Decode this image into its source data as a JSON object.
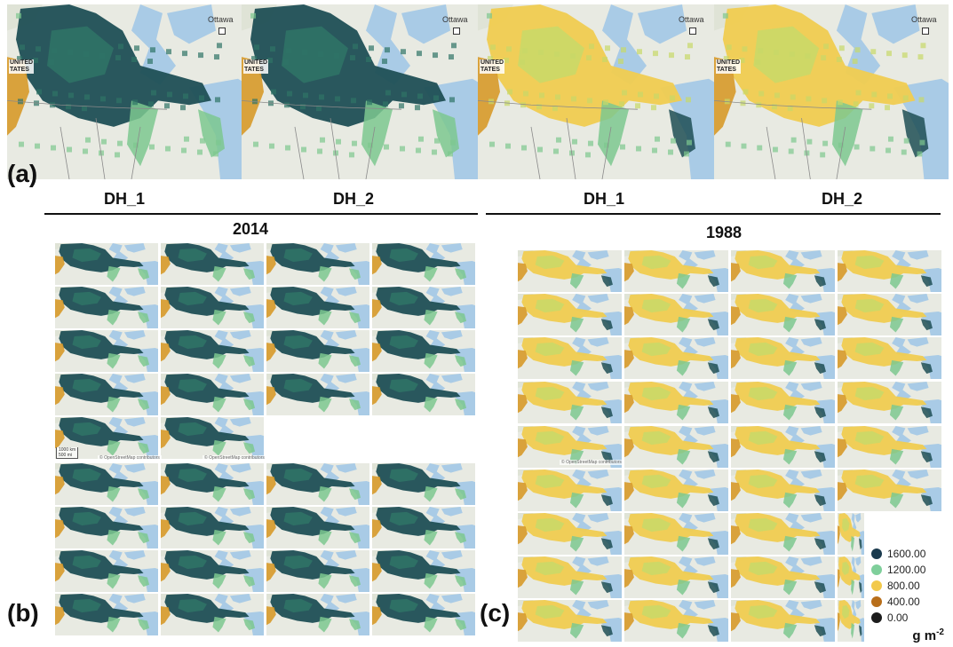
{
  "panel_a": {
    "letter": "(a)",
    "tiles": [
      {
        "palette": "green",
        "city_label": "Ottawa",
        "country_label_1": "UNITED",
        "country_label_2": "TATES"
      },
      {
        "palette": "green",
        "city_label": "Ottawa",
        "country_label_1": "UNITED",
        "country_label_2": "TATES"
      },
      {
        "palette": "yellow",
        "city_label": "Ottawa",
        "country_label_1": "UNITED",
        "country_label_2": "TATES"
      },
      {
        "palette": "yellow",
        "city_label": "Ottawa",
        "country_label_1": "UNITED",
        "country_label_2": "TATES"
      }
    ],
    "column_labels": [
      "DH_1",
      "DH_2",
      "DH_1",
      "DH_2"
    ],
    "year_labels": [
      "2014",
      "1988"
    ]
  },
  "panel_b": {
    "letter": "(b)",
    "palette": "green",
    "scale_text_1": "1000 km",
    "scale_text_2": "500 mi",
    "attribution": "© OpenStreetMap contributors"
  },
  "panel_c": {
    "letter": "(c)",
    "palette": "yellow",
    "attribution": "© OpenStreetMap contributors"
  },
  "legend": {
    "entries": [
      {
        "label": "1600.00",
        "color": "#1a3a4e"
      },
      {
        "label": "1200.00",
        "color": "#7fcf9b"
      },
      {
        "label": "800.00",
        "color": "#f2c94c"
      },
      {
        "label": "400.00",
        "color": "#b86e1a"
      },
      {
        "label": "0.00",
        "color": "#1c1c1c"
      }
    ],
    "unit_base": "g m",
    "unit_exp": "-2"
  },
  "colors": {
    "water": "#a9cbe6",
    "land": "#e8eae2",
    "dark_green": "#1f4f55",
    "mid_green": "#2f7466",
    "light_green": "#7dc88f",
    "yellow": "#f0cc50",
    "lime": "#c8d968",
    "orange": "#d79a2a"
  }
}
